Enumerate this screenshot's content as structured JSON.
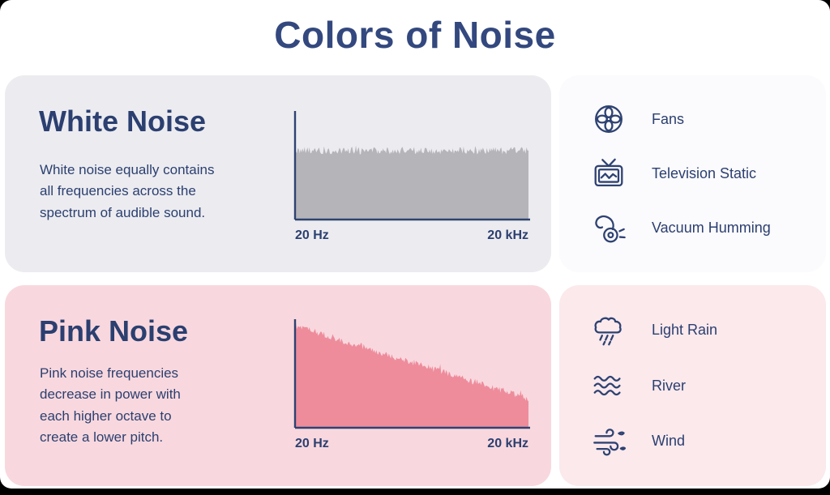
{
  "title": "Colors of Noise",
  "colors": {
    "navy": "#2e4272",
    "title_blue": "#33487e",
    "white_card_bg": "#ececf0",
    "white_panel_bg": "#fbfafc",
    "pink_card_bg": "#f8d8de",
    "pink_panel_bg": "#fbe9ec",
    "white_fill": "#b5b4b8",
    "pink_fill": "#ee8c9b"
  },
  "chart_data": [
    {
      "type": "area",
      "title": "White Noise spectrum",
      "xlabel_left": "20 Hz",
      "xlabel_right": "20 kHz",
      "profile": "flat",
      "note": "equal power across all audible frequencies"
    },
    {
      "type": "area",
      "title": "Pink Noise spectrum",
      "xlabel_left": "20 Hz",
      "xlabel_right": "20 kHz",
      "profile": "declining",
      "note": "power decreases with each higher octave"
    }
  ],
  "sections": [
    {
      "heading": "White Noise",
      "description": "White noise equally contains\nall frequencies across the\nspectrum of audible sound.",
      "chart": {
        "x_left_label": "20 Hz",
        "x_right_label": "20 kHz",
        "profile": "flat"
      },
      "examples": [
        {
          "icon": "fan-icon",
          "label": "Fans"
        },
        {
          "icon": "tv-static-icon",
          "label": "Television Static"
        },
        {
          "icon": "vacuum-icon",
          "label": "Vacuum Humming"
        }
      ]
    },
    {
      "heading": "Pink Noise",
      "description": "Pink noise frequencies\ndecrease in power with\neach higher octave to\ncreate a lower pitch.",
      "chart": {
        "x_left_label": "20 Hz",
        "x_right_label": "20 kHz",
        "profile": "declining"
      },
      "examples": [
        {
          "icon": "rain-cloud-icon",
          "label": "Light Rain"
        },
        {
          "icon": "river-icon",
          "label": "River"
        },
        {
          "icon": "wind-icon",
          "label": "Wind"
        }
      ]
    }
  ]
}
